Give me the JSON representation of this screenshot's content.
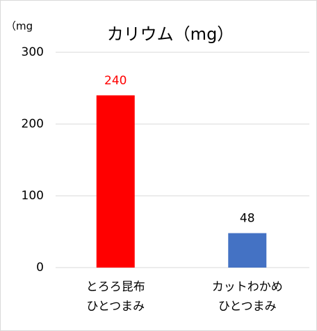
{
  "chart_data": {
    "type": "bar",
    "title": "カリウム（mg）",
    "y_unit_label": "（mg",
    "categories": [
      "とろろ昆布\nひとつまみ",
      "カットわかめ\nひとつまみ"
    ],
    "values": [
      240,
      48
    ],
    "colors": [
      "#ff0000",
      "#4472c4"
    ],
    "value_label_colors": [
      "#ff0000",
      "#000000"
    ],
    "ylim": [
      0,
      300
    ],
    "yticks": [
      0,
      100,
      200,
      300
    ],
    "grid": true
  }
}
